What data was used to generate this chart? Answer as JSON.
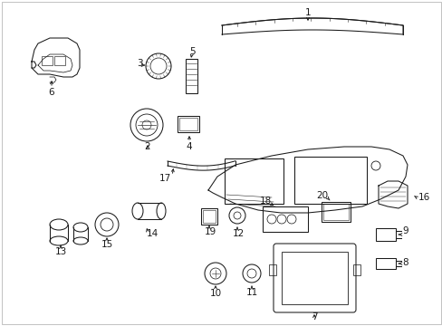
{
  "background_color": "#ffffff",
  "line_color": "#1a1a1a",
  "fig_width": 4.89,
  "fig_height": 3.6,
  "dpi": 100,
  "label_fontsize": 7.5,
  "lw": 0.75
}
